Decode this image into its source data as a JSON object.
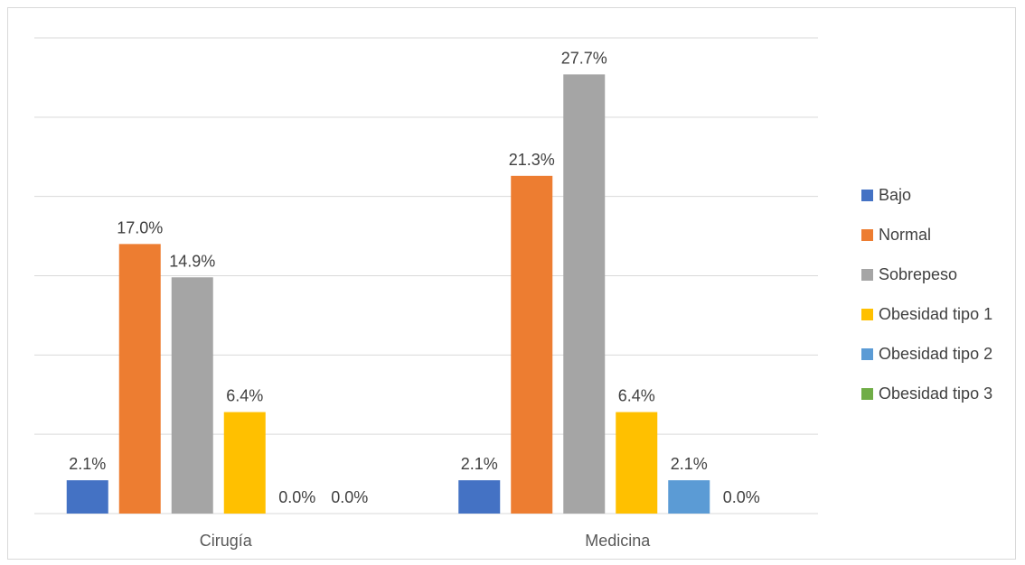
{
  "chart_data": {
    "type": "bar",
    "categories": [
      "Cirugía",
      "Medicina"
    ],
    "series": [
      {
        "name": "Bajo",
        "values": [
          2.1,
          2.1
        ],
        "labels": [
          "2.1%",
          "2.1%"
        ],
        "color": "#4472C4"
      },
      {
        "name": "Normal",
        "values": [
          17.0,
          21.3
        ],
        "labels": [
          "17.0%",
          "21.3%"
        ],
        "color": "#ED7D31"
      },
      {
        "name": "Sobrepeso",
        "values": [
          14.9,
          27.7
        ],
        "labels": [
          "14.9%",
          "27.7%"
        ],
        "color": "#A5A5A5"
      },
      {
        "name": "Obesidad tipo 1",
        "values": [
          6.4,
          6.4
        ],
        "labels": [
          "6.4%",
          "6.4%"
        ],
        "color": "#FFC000"
      },
      {
        "name": "Obesidad tipo 2",
        "values": [
          0.0,
          2.1
        ],
        "labels": [
          "0.0%",
          "2.1%"
        ],
        "color": "#5B9BD5"
      },
      {
        "name": "Obesidad tipo 3",
        "values": [
          0.0,
          0.0
        ],
        "labels": [
          "0.0%",
          "0.0%"
        ],
        "color": "#70AD47"
      }
    ],
    "title": "",
    "xlabel": "",
    "ylabel": "",
    "ylim": [
      0,
      30
    ],
    "grid": true,
    "legend_position": "right"
  }
}
